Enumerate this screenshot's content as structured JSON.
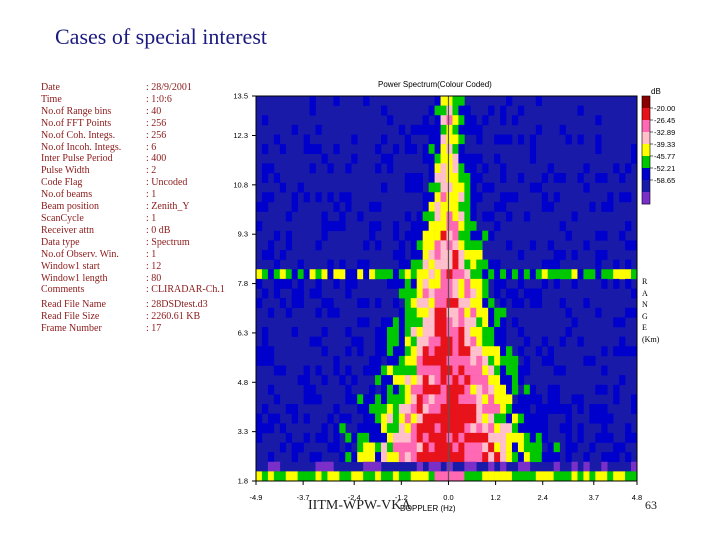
{
  "slide": {
    "title": "Cases of special interest",
    "footer_left": "IITM-WPW-VKA",
    "footer_right": "63"
  },
  "parameters": [
    {
      "key": "Date",
      "value": ": 28/9/2001"
    },
    {
      "key": "Time",
      "value": ": 1:0:6"
    },
    {
      "key": "No.of Range bins",
      "value": ": 40"
    },
    {
      "key": "No.of FFT Points",
      "value": ": 256"
    },
    {
      "key": "No.of Coh. Integs.",
      "value": ": 256"
    },
    {
      "key": "No.of Incoh. Integs.",
      "value": ": 6"
    },
    {
      "key": "Inter Pulse Period",
      "value": ": 400"
    },
    {
      "key": "Pulse Width",
      "value": ": 2"
    },
    {
      "key": "Code Flag",
      "value": ": Uncoded"
    },
    {
      "key": "No.of beams",
      "value": ": 1"
    },
    {
      "key": "Beam position",
      "value": ": Zenith_Y"
    },
    {
      "key": "ScanCycle",
      "value": ": 1"
    },
    {
      "key": "Receiver attn",
      "value": ": 0  dB"
    },
    {
      "key": "Data type",
      "value": ": Spectrum"
    },
    {
      "key": "No.of Observ. Win.",
      "value": ": 1"
    },
    {
      "key": "Window1 start",
      "value": ": 12"
    },
    {
      "key": "Window1 length",
      "value": ": 80"
    },
    {
      "key": "Comments",
      "value": ": CLIRADAR-Ch.1"
    },
    {
      "key": "Read File Name",
      "value": ": 28DSDtest.d3"
    },
    {
      "key": "Read File Size",
      "value": ": 2260.61 KB"
    },
    {
      "key": "Frame Number",
      "value": ": 17"
    }
  ],
  "chart_data": {
    "type": "heatmap",
    "title": "Power Spectrum(Colour Coded)",
    "xlabel": "DOPPLER (Hz)",
    "ylabel_letters": [
      "R",
      "A",
      "N",
      "G",
      "E",
      "(Km)"
    ],
    "x_ticks": [
      "-4.9",
      "-3.7",
      "-2.4",
      "-1.2",
      "0.0",
      "1.2",
      "2.4",
      "3.7",
      "4.8"
    ],
    "y_ticks": [
      "13.5",
      "12.3",
      "10.8",
      "9.3",
      "7.8",
      "6.3",
      "4.8",
      "3.3",
      "1.8"
    ],
    "xlim": [
      -4.9,
      4.8
    ],
    "ylim": [
      1.8,
      13.5
    ],
    "colorbar": {
      "unit": "dB",
      "levels": [
        "-20.00",
        "-26.45",
        "-32.89",
        "-39.33",
        "-45.77",
        "-52.21",
        "-58.65"
      ],
      "colors": [
        "#8b0000",
        "#e8121a",
        "#ff69b4",
        "#ffc0cb",
        "#ffff00",
        "#00c800",
        "#0000cd",
        "#1a1aa8",
        "#7b2fc9"
      ]
    }
  }
}
